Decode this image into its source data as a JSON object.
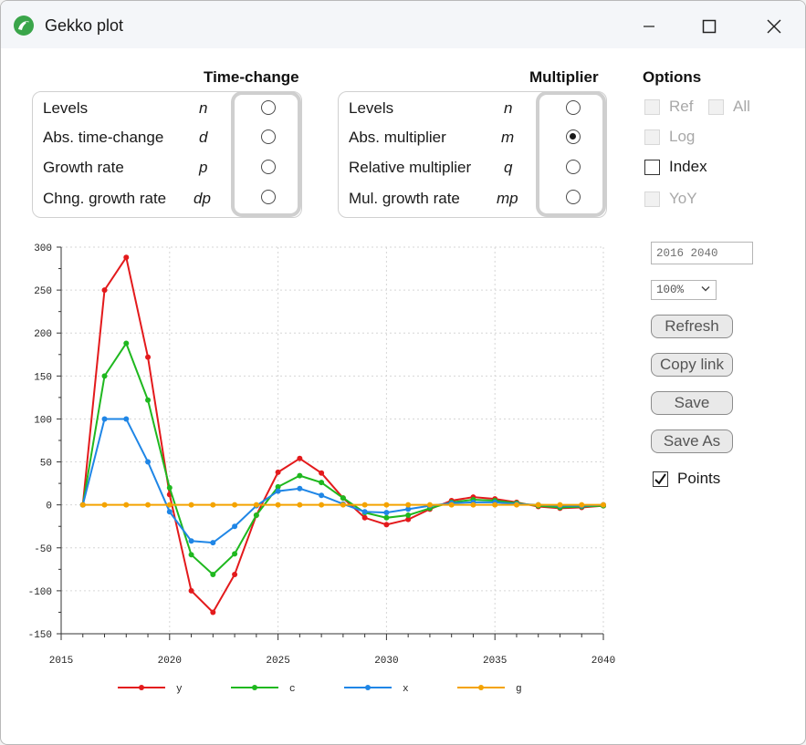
{
  "window": {
    "title": "Gekko plot"
  },
  "timechange": {
    "heading": "Time-change",
    "rows": [
      {
        "label": "Levels",
        "code": "n",
        "checked": false
      },
      {
        "label": "Abs. time-change",
        "code": "d",
        "checked": false
      },
      {
        "label": "Growth rate",
        "code": "p",
        "checked": false
      },
      {
        "label": "Chng. growth rate",
        "code": "dp",
        "checked": false
      }
    ]
  },
  "multiplier": {
    "heading": "Multiplier",
    "rows": [
      {
        "label": "Levels",
        "code": "n",
        "checked": false
      },
      {
        "label": "Abs. multiplier",
        "code": "m",
        "checked": true
      },
      {
        "label": "Relative multiplier",
        "code": "q",
        "checked": false
      },
      {
        "label": "Mul. growth rate",
        "code": "mp",
        "checked": false
      }
    ]
  },
  "options": {
    "heading": "Options",
    "ref": "Ref",
    "all": "All",
    "log": "Log",
    "index": "Index",
    "yoy": "YoY"
  },
  "controls": {
    "period_value": "2016 2040",
    "zoom_value": "100%",
    "refresh": "Refresh",
    "copy_link": "Copy link",
    "save": "Save",
    "save_as": "Save As",
    "points": "Points",
    "points_checked": true
  },
  "colors": {
    "y": "#e31a1c",
    "c": "#1fb81f",
    "x": "#1f86e6",
    "g": "#f4a300"
  },
  "chart_data": {
    "type": "line",
    "x": [
      2016,
      2017,
      2018,
      2019,
      2020,
      2021,
      2022,
      2023,
      2024,
      2025,
      2026,
      2027,
      2028,
      2029,
      2030,
      2031,
      2032,
      2033,
      2034,
      2035,
      2036,
      2037,
      2038,
      2039,
      2040
    ],
    "xlim": [
      2015,
      2040
    ],
    "ylim": [
      -150,
      300
    ],
    "xticks": [
      "2015",
      "2020",
      "2025",
      "2030",
      "2035",
      "2040"
    ],
    "yticks": [
      "300",
      "250",
      "200",
      "150",
      "100",
      "50",
      "0",
      "-50",
      "-100",
      "-150"
    ],
    "grid": true,
    "legend": "bottom",
    "series": [
      {
        "name": "y",
        "color": "#e31a1c",
        "values": [
          0,
          250,
          288,
          172,
          12,
          -100,
          -125,
          -81,
          -12,
          38,
          54,
          37,
          8,
          -15,
          -23,
          -17,
          -5,
          5,
          9,
          7,
          3,
          -2,
          -4,
          -3,
          -1
        ]
      },
      {
        "name": "c",
        "color": "#1fb81f",
        "values": [
          0,
          150,
          188,
          122,
          20,
          -58,
          -81,
          -57,
          -12,
          21,
          34,
          26,
          8,
          -9,
          -15,
          -12,
          -4,
          3,
          6,
          5,
          2,
          -1,
          -3,
          -2,
          -1
        ]
      },
      {
        "name": "x",
        "color": "#1f86e6",
        "values": [
          0,
          100,
          100,
          50,
          -8,
          -42,
          -44,
          -25,
          -1,
          16,
          19,
          11,
          1,
          -8,
          -9,
          -5,
          -1,
          2,
          3,
          3,
          1,
          0,
          -1,
          -1,
          0
        ]
      },
      {
        "name": "g",
        "color": "#f4a300",
        "values": [
          0,
          0,
          0,
          0,
          0,
          0,
          0,
          0,
          0,
          0,
          0,
          0,
          0,
          0,
          0,
          0,
          0,
          0,
          0,
          0,
          0,
          0,
          0,
          0,
          0
        ]
      }
    ]
  }
}
